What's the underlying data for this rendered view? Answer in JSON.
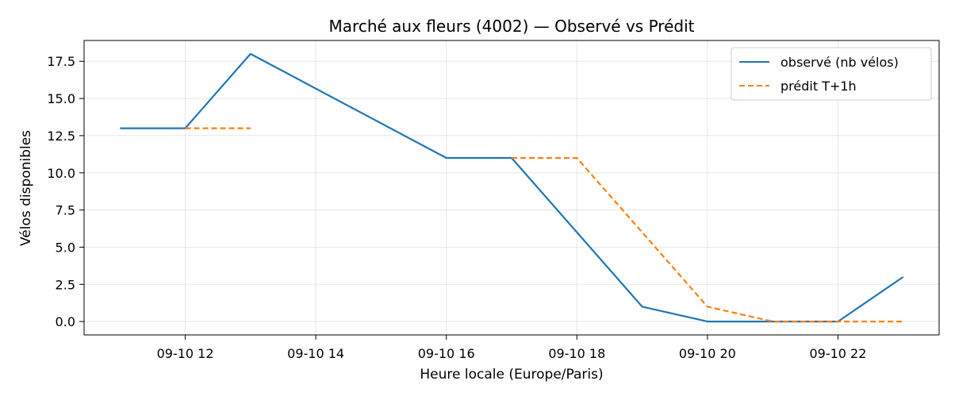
{
  "chart_data": {
    "type": "line",
    "title": "Marché aux fleurs (4002) — Observé vs Prédit",
    "xlabel": "Heure locale (Europe/Paris)",
    "ylabel": "Vélos disponibles",
    "x_ticks": [
      "09-10 12",
      "09-10 14",
      "09-10 16",
      "09-10 18",
      "09-10 20",
      "09-10 22"
    ],
    "y_ticks": [
      "0.0",
      "2.5",
      "5.0",
      "7.5",
      "10.0",
      "12.5",
      "15.0",
      "17.5"
    ],
    "xlim": [
      "2024-09-10 10:27",
      "2024-09-10 23:33"
    ],
    "ylim": [
      -0.9,
      18.9
    ],
    "grid": true,
    "legend_position": "top-right",
    "series": [
      {
        "name": "observé (nb vélos)",
        "color": "#1f77b4",
        "style": "solid",
        "points": [
          {
            "x": "2024-09-10 11:00",
            "y": 13
          },
          {
            "x": "2024-09-10 12:00",
            "y": 13
          },
          {
            "x": "2024-09-10 13:00",
            "y": 18
          },
          {
            "x": "2024-09-10 16:00",
            "y": 11
          },
          {
            "x": "2024-09-10 17:00",
            "y": 11
          },
          {
            "x": "2024-09-10 19:00",
            "y": 1
          },
          {
            "x": "2024-09-10 20:00",
            "y": 0
          },
          {
            "x": "2024-09-10 21:00",
            "y": 0
          },
          {
            "x": "2024-09-10 22:00",
            "y": 0
          },
          {
            "x": "2024-09-10 23:00",
            "y": 3
          }
        ]
      },
      {
        "name": "prédit T+1h",
        "color": "#ff7f0e",
        "style": "dashed",
        "points": [
          {
            "x": "2024-09-10 12:00",
            "y": 13
          },
          {
            "x": "2024-09-10 13:00",
            "y": 13
          },
          null,
          {
            "x": "2024-09-10 17:00",
            "y": 11
          },
          {
            "x": "2024-09-10 18:00",
            "y": 11
          },
          {
            "x": "2024-09-10 19:00",
            "y": 6
          },
          {
            "x": "2024-09-10 20:00",
            "y": 1
          },
          {
            "x": "2024-09-10 21:00",
            "y": 0
          },
          {
            "x": "2024-09-10 22:00",
            "y": 0
          },
          {
            "x": "2024-09-10 23:00",
            "y": 0
          }
        ]
      }
    ]
  }
}
